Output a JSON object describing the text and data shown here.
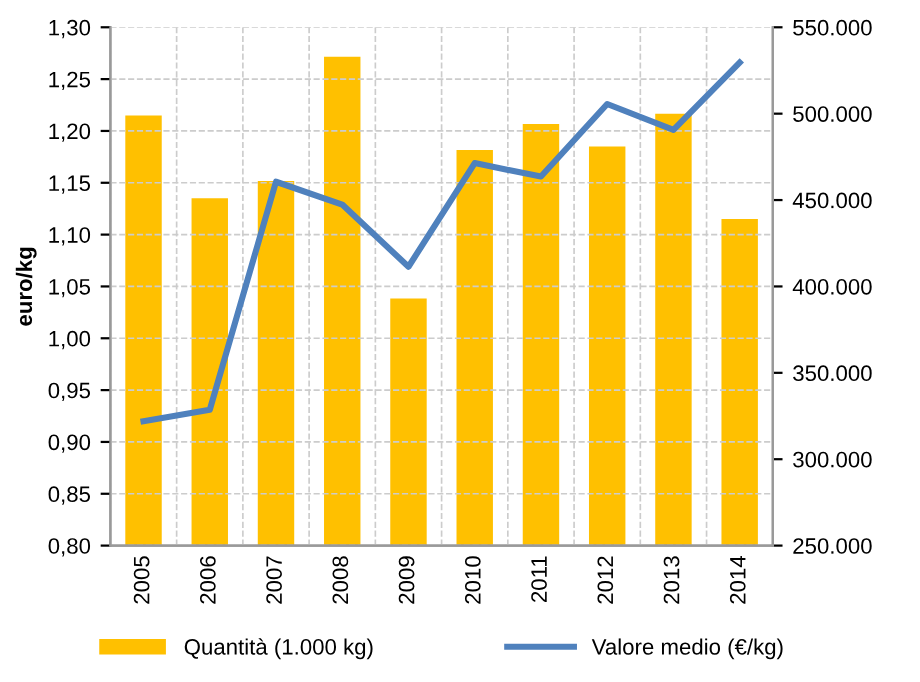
{
  "chart_data": {
    "type": "bar",
    "ylabel": "euro/kg",
    "categories": [
      "2005",
      "2006",
      "2007",
      "2008",
      "2009",
      "2010",
      "2011",
      "2012",
      "2013",
      "2014"
    ],
    "series": [
      {
        "name": "Quantità (1.000 kg)",
        "axis": "y2",
        "color": "#ffc000",
        "values": [
          499000,
          451000,
          461000,
          533000,
          393000,
          479000,
          494000,
          481000,
          500000,
          439000
        ]
      },
      {
        "name": "Valore medio (€/kg)",
        "type": "line",
        "color": "#4f81bd",
        "values": [
          0.92,
          0.931,
          1.151,
          1.129,
          1.069,
          1.169,
          1.156,
          1.226,
          1.201,
          1.266
        ]
      }
    ],
    "ylim": [
      0.8,
      1.3
    ],
    "yticks": [
      {
        "value": 0.8,
        "label": "0,80"
      },
      {
        "value": 0.85,
        "label": "0,85"
      },
      {
        "value": 0.9,
        "label": "0,90"
      },
      {
        "value": 0.95,
        "label": "0,95"
      },
      {
        "value": 1.0,
        "label": "1,00"
      },
      {
        "value": 1.05,
        "label": "1,05"
      },
      {
        "value": 1.1,
        "label": "1,10"
      },
      {
        "value": 1.15,
        "label": "1,15"
      },
      {
        "value": 1.2,
        "label": "1,20"
      },
      {
        "value": 1.25,
        "label": "1,25"
      },
      {
        "value": 1.3,
        "label": "1,30"
      }
    ],
    "y2lim": [
      250000,
      550000
    ],
    "y2ticks": [
      {
        "value": 250000,
        "label": "250.000"
      },
      {
        "value": 300000,
        "label": "300.000"
      },
      {
        "value": 350000,
        "label": "350.000"
      },
      {
        "value": 400000,
        "label": "400.000"
      },
      {
        "value": 450000,
        "label": "450.000"
      },
      {
        "value": 500000,
        "label": "500.000"
      },
      {
        "value": 550000,
        "label": "550.000"
      }
    ],
    "grid": true,
    "legend": "bottom",
    "marker": "none",
    "line_style": "solid"
  }
}
